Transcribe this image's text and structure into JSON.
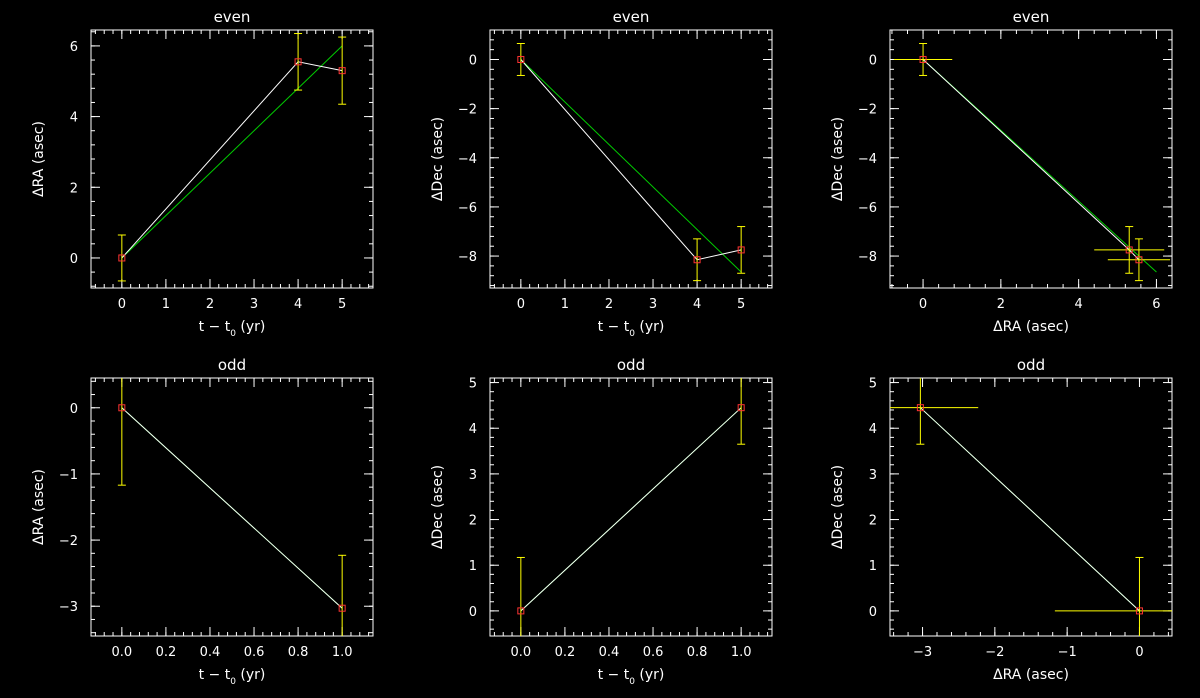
{
  "colors": {
    "background": "#000000",
    "axes": "#ffffff",
    "data_line": "#ffffff",
    "fit_line": "#00cc00",
    "error_bar": "#ffff00",
    "marker": "#ff3333"
  },
  "chart_data": [
    {
      "type": "scatter",
      "title": "even",
      "xlabel": "t − t",
      "xlabel_sub": "0",
      "xlabel_suffix": " (yr)",
      "ylabel": "ΔRA (asec)",
      "xlim": [
        -0.7,
        5.7
      ],
      "ylim": [
        -0.85,
        6.45
      ],
      "xticks": [
        0,
        1,
        2,
        3,
        4,
        5
      ],
      "yticks": [
        0,
        2,
        4,
        6
      ],
      "series": [
        {
          "points": [
            {
              "x": 0,
              "y": 0,
              "yerr": 0.65
            },
            {
              "x": 4,
              "y": 5.55,
              "yerr": 0.8
            },
            {
              "x": 5,
              "y": 5.3,
              "yerr": 0.95
            }
          ]
        }
      ],
      "connect": true,
      "fit": [
        [
          0,
          0
        ],
        [
          5,
          6.0
        ]
      ]
    },
    {
      "type": "scatter",
      "title": "even",
      "xlabel": "t − t",
      "xlabel_sub": "0",
      "xlabel_suffix": " (yr)",
      "ylabel": "ΔDec (asec)",
      "xlim": [
        -0.7,
        5.7
      ],
      "ylim": [
        -9.3,
        1.2
      ],
      "xticks": [
        0,
        1,
        2,
        3,
        4,
        5
      ],
      "yticks": [
        -8,
        -6,
        -4,
        -2,
        0
      ],
      "series": [
        {
          "points": [
            {
              "x": 0,
              "y": 0,
              "yerr": 0.65
            },
            {
              "x": 4,
              "y": -8.15,
              "yerr": 0.85
            },
            {
              "x": 5,
              "y": -7.75,
              "yerr": 0.95
            }
          ]
        }
      ],
      "connect": true,
      "fit": [
        [
          0,
          0
        ],
        [
          5,
          -8.65
        ]
      ]
    },
    {
      "type": "scatter",
      "title": "even",
      "xlabel": "ΔRA (asec)",
      "xlabel_sub": "",
      "xlabel_suffix": "",
      "ylabel": "ΔDec (asec)",
      "xlim": [
        -0.85,
        6.4
      ],
      "ylim": [
        -9.3,
        1.2
      ],
      "xticks": [
        0,
        2,
        4,
        6
      ],
      "yticks": [
        -8,
        -6,
        -4,
        -2,
        0
      ],
      "series": [
        {
          "points": [
            {
              "x": 0,
              "y": 0,
              "xerr": 0.75,
              "yerr": 0.65
            },
            {
              "x": 5.3,
              "y": -7.75,
              "xerr": 0.9,
              "yerr": 0.95
            },
            {
              "x": 5.55,
              "y": -8.15,
              "xerr": 0.8,
              "yerr": 0.85
            }
          ]
        }
      ],
      "connect": true,
      "fit": [
        [
          0,
          0
        ],
        [
          6.0,
          -8.65
        ]
      ]
    },
    {
      "type": "scatter",
      "title": "odd",
      "xlabel": "t − t",
      "xlabel_sub": "0",
      "xlabel_suffix": " (yr)",
      "ylabel": "ΔRA (asec)",
      "xlim": [
        -0.14,
        1.14
      ],
      "ylim": [
        -3.45,
        0.45
      ],
      "xticks": [
        0.0,
        0.2,
        0.4,
        0.6,
        0.8,
        1.0
      ],
      "yticks": [
        -3,
        -2,
        -1,
        0
      ],
      "xtick_format": "1",
      "series": [
        {
          "points": [
            {
              "x": 0,
              "y": 0,
              "yerr": 1.17
            },
            {
              "x": 1,
              "y": -3.03,
              "yerr": 0.8
            }
          ]
        }
      ],
      "connect": true,
      "fit": [
        [
          0,
          0
        ],
        [
          1,
          -3.03
        ]
      ]
    },
    {
      "type": "scatter",
      "title": "odd",
      "xlabel": "t − t",
      "xlabel_sub": "0",
      "xlabel_suffix": " (yr)",
      "ylabel": "ΔDec (asec)",
      "xlim": [
        -0.14,
        1.14
      ],
      "ylim": [
        -0.55,
        5.1
      ],
      "xticks": [
        0.0,
        0.2,
        0.4,
        0.6,
        0.8,
        1.0
      ],
      "yticks": [
        0,
        1,
        2,
        3,
        4,
        5
      ],
      "xtick_format": "1",
      "series": [
        {
          "points": [
            {
              "x": 0,
              "y": 0,
              "yerr": 1.17
            },
            {
              "x": 1,
              "y": 4.45,
              "yerr": 0.8
            }
          ]
        }
      ],
      "connect": true,
      "fit": [
        [
          0,
          0
        ],
        [
          1,
          4.45
        ]
      ]
    },
    {
      "type": "scatter",
      "title": "odd",
      "xlabel": "ΔRA (asec)",
      "xlabel_sub": "",
      "xlabel_suffix": "",
      "ylabel": "ΔDec (asec)",
      "xlim": [
        -3.45,
        0.45
      ],
      "ylim": [
        -0.55,
        5.1
      ],
      "xticks": [
        -3,
        -2,
        -1,
        0
      ],
      "yticks": [
        0,
        1,
        2,
        3,
        4,
        5
      ],
      "series": [
        {
          "points": [
            {
              "x": -3.03,
              "y": 4.45,
              "xerr": 0.8,
              "yerr": 0.8
            },
            {
              "x": 0,
              "y": 0,
              "xerr": 1.17,
              "yerr": 1.17
            }
          ]
        }
      ],
      "connect": true,
      "fit": [
        [
          -3.03,
          4.45
        ],
        [
          0,
          0
        ]
      ]
    }
  ]
}
